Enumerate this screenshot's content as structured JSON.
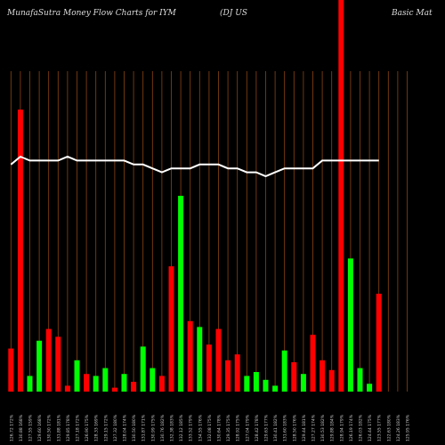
{
  "header": {
    "title": "MunafaSutra  Money Flow  Charts for IYM",
    "subtitle": "(DJ US",
    "subtitle_right": "Basic Mat"
  },
  "chart_data": {
    "type": "bar",
    "title": "MunafaSutra  Money Flow  Charts for IYM (DJ US Basic Mat",
    "colors": {
      "up": "#00ff00",
      "down": "#ff0000",
      "line": "#ffffff",
      "grid": "#8b4513",
      "background": "#000000"
    },
    "ylim": [
      0,
      100
    ],
    "categories": [
      "126.72 172%",
      "130.88 168%",
      "127.55 159%",
      "129.60 168%",
      "130.50 172%",
      "131.88 181%",
      "129.85 178%",
      "127.18 172%",
      "126.90 175%",
      "128.33 169%",
      "129.15 172%",
      "127.32 180%",
      "128.04 174%",
      "130.50 180%",
      "131.87 171%",
      "130.99 175%",
      "130.76 182%",
      "132.38 183%",
      "132.12 185%",
      "133.52 179%",
      "134.55 176%",
      "132.08 175%",
      "130.64 178%",
      "129.35 175%",
      "128.92 175%",
      "127.04 179%",
      "128.42 178%",
      "129.63 177%",
      "130.41 182%",
      "131.60 183%",
      "128.50 176%",
      "129.44 181%",
      "127.27 174%",
      "130.53 182%",
      "129.88 184%",
      "128.94 179%",
      "126.19 174%",
      "126.03 182%",
      "124.44 175%",
      "123.55 177%",
      "122.63 180%",
      "124.26 183%",
      "125.95 176%"
    ],
    "money_flow_direction": [
      "down",
      "down",
      "up",
      "up",
      "down",
      "down",
      "down",
      "up",
      "down",
      "up",
      "up",
      "down",
      "up",
      "down",
      "up",
      "up",
      "down",
      "down",
      "up",
      "down",
      "up",
      "down",
      "down",
      "down",
      "down",
      "up",
      "up",
      "up",
      "up",
      "up",
      "down",
      "up",
      "down",
      "down",
      "down",
      "down",
      "up",
      "up",
      "up",
      "down",
      "down",
      "up",
      "down"
    ],
    "values": [
      11,
      72,
      4,
      13,
      16,
      14,
      1.5,
      8,
      4.5,
      4,
      6,
      1,
      4.5,
      2.5,
      11.5,
      6,
      4,
      32,
      50,
      18,
      16.5,
      12,
      16,
      8,
      9.5,
      4,
      5,
      3,
      1.5,
      10.5,
      7.5,
      4.5,
      14.5,
      8,
      5.5,
      100,
      34,
      6,
      2,
      25,
      0,
      0,
      0
    ],
    "price_line": [
      58,
      60,
      59,
      59,
      59,
      59,
      60,
      59,
      59,
      59,
      59,
      59,
      59,
      58,
      58,
      57,
      56,
      57,
      57,
      57,
      58,
      58,
      58,
      57,
      57,
      56,
      56,
      55,
      56,
      57,
      57,
      57,
      57,
      59,
      59,
      59,
      59,
      59,
      59,
      59,
      0,
      0,
      0
    ]
  }
}
